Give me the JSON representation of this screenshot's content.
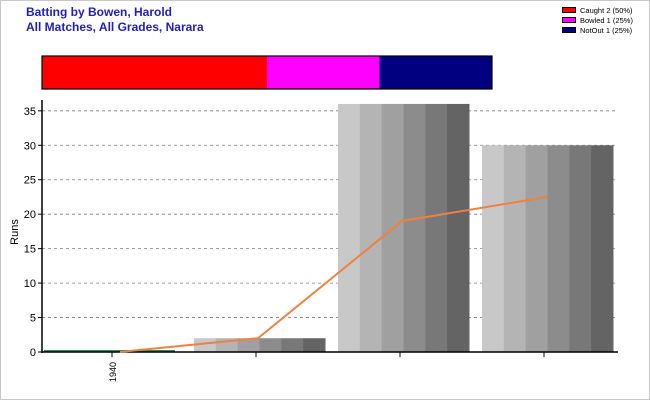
{
  "header": {
    "title_line1": "Batting by Bowen, Harold",
    "title_line2": "All Matches, All Grades, Narara"
  },
  "legend": [
    {
      "label": "Caught 2 (50%)",
      "color": "#ff0000"
    },
    {
      "label": "Bowled 1 (25%)",
      "color": "#ff00ff"
    },
    {
      "label": "NotOut 1 (25%)",
      "color": "#000080"
    }
  ],
  "chart_data": [
    {
      "type": "bar",
      "title": "Dismissal breakdown",
      "orientation": "horizontal-stacked",
      "segments": [
        {
          "name": "Caught",
          "count": 2,
          "percent": 50,
          "color": "#ff0000"
        },
        {
          "name": "Bowled",
          "count": 1,
          "percent": 25,
          "color": "#ff00ff"
        },
        {
          "name": "NotOut",
          "count": 1,
          "percent": 25,
          "color": "#000080"
        }
      ]
    },
    {
      "type": "bar",
      "ylabel": "Runs",
      "ylim": [
        0,
        35
      ],
      "yticks": [
        0,
        5,
        10,
        15,
        20,
        25,
        30,
        35
      ],
      "grid": true,
      "xtick_labels": [
        "1940",
        "",
        "",
        ""
      ],
      "bars": [
        0,
        2,
        36,
        30
      ],
      "bar_colors": [
        "#2e8b57",
        "#8c8c8c",
        "#8c8c8c",
        "#8c8c8c"
      ],
      "line": {
        "values": [
          0,
          2,
          19,
          22.5
        ],
        "color": "#f08040"
      }
    }
  ]
}
